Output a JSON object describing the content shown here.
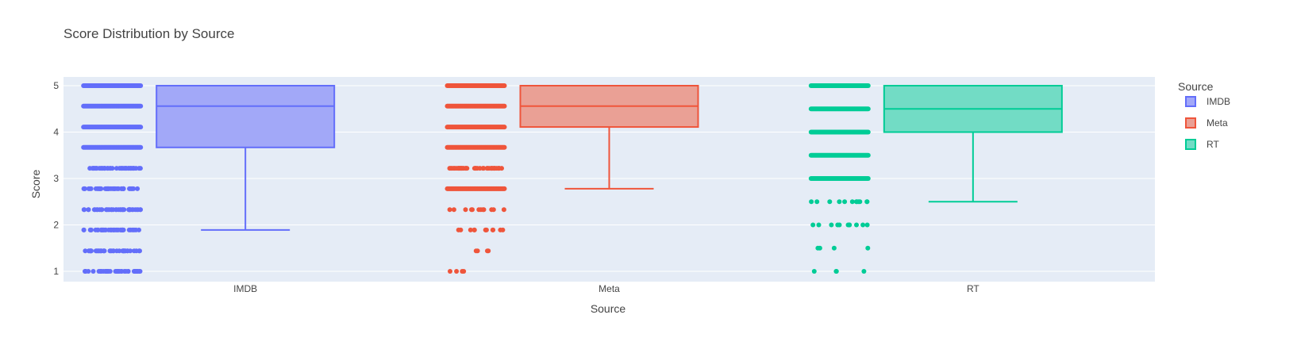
{
  "chart_data": {
    "type": "box",
    "title": "Score Distribution by Source",
    "xlabel": "Source",
    "ylabel": "Score",
    "categories": [
      "IMDB",
      "Meta",
      "RT"
    ],
    "yticks": [
      1,
      2,
      3,
      4,
      5
    ],
    "ylim": [
      0.8,
      5.2
    ],
    "grid": true,
    "legend": {
      "title": "Source",
      "placement": "right"
    },
    "series": [
      {
        "name": "IMDB",
        "color": "#636efa",
        "fill": "#a2a8f8",
        "box": {
          "lower_fence": 1.89,
          "q1": 3.67,
          "median": 4.56,
          "q3": 5.0,
          "upper_fence": 5.0
        },
        "point_levels": [
          {
            "y": 5.0,
            "density": "dense"
          },
          {
            "y": 4.56,
            "density": "dense"
          },
          {
            "y": 4.11,
            "density": "dense"
          },
          {
            "y": 3.67,
            "density": "dense"
          },
          {
            "y": 3.22,
            "density": "medium"
          },
          {
            "y": 2.78,
            "density": "medium"
          },
          {
            "y": 2.33,
            "density": "medium"
          },
          {
            "y": 1.89,
            "density": "medium"
          },
          {
            "y": 1.44,
            "density": "medium"
          },
          {
            "y": 1.0,
            "density": "medium"
          }
        ]
      },
      {
        "name": "Meta",
        "color": "#ef553b",
        "fill": "#eaa095",
        "box": {
          "lower_fence": 2.78,
          "q1": 4.11,
          "median": 4.56,
          "q3": 5.0,
          "upper_fence": 5.0
        },
        "point_levels": [
          {
            "y": 5.0,
            "density": "dense"
          },
          {
            "y": 4.56,
            "density": "dense"
          },
          {
            "y": 4.11,
            "density": "dense"
          },
          {
            "y": 3.67,
            "density": "dense"
          },
          {
            "y": 3.22,
            "density": "medium"
          },
          {
            "y": 2.78,
            "density": "dense"
          },
          {
            "y": 2.33,
            "density": "sparse"
          },
          {
            "y": 1.89,
            "density": "sparse"
          },
          {
            "y": 1.44,
            "density": "few"
          },
          {
            "y": 1.0,
            "density": "few"
          }
        ]
      },
      {
        "name": "RT",
        "color": "#00cc96",
        "fill": "#72dcc5",
        "box": {
          "lower_fence": 2.5,
          "q1": 4.0,
          "median": 4.5,
          "q3": 5.0,
          "upper_fence": 5.0
        },
        "point_levels": [
          {
            "y": 5.0,
            "density": "dense"
          },
          {
            "y": 4.5,
            "density": "dense"
          },
          {
            "y": 4.0,
            "density": "dense"
          },
          {
            "y": 3.5,
            "density": "dense"
          },
          {
            "y": 3.0,
            "density": "dense"
          },
          {
            "y": 2.5,
            "density": "sparse"
          },
          {
            "y": 2.0,
            "density": "sparse"
          },
          {
            "y": 1.5,
            "density": "few"
          },
          {
            "y": 1.0,
            "density": "few"
          }
        ]
      }
    ]
  }
}
